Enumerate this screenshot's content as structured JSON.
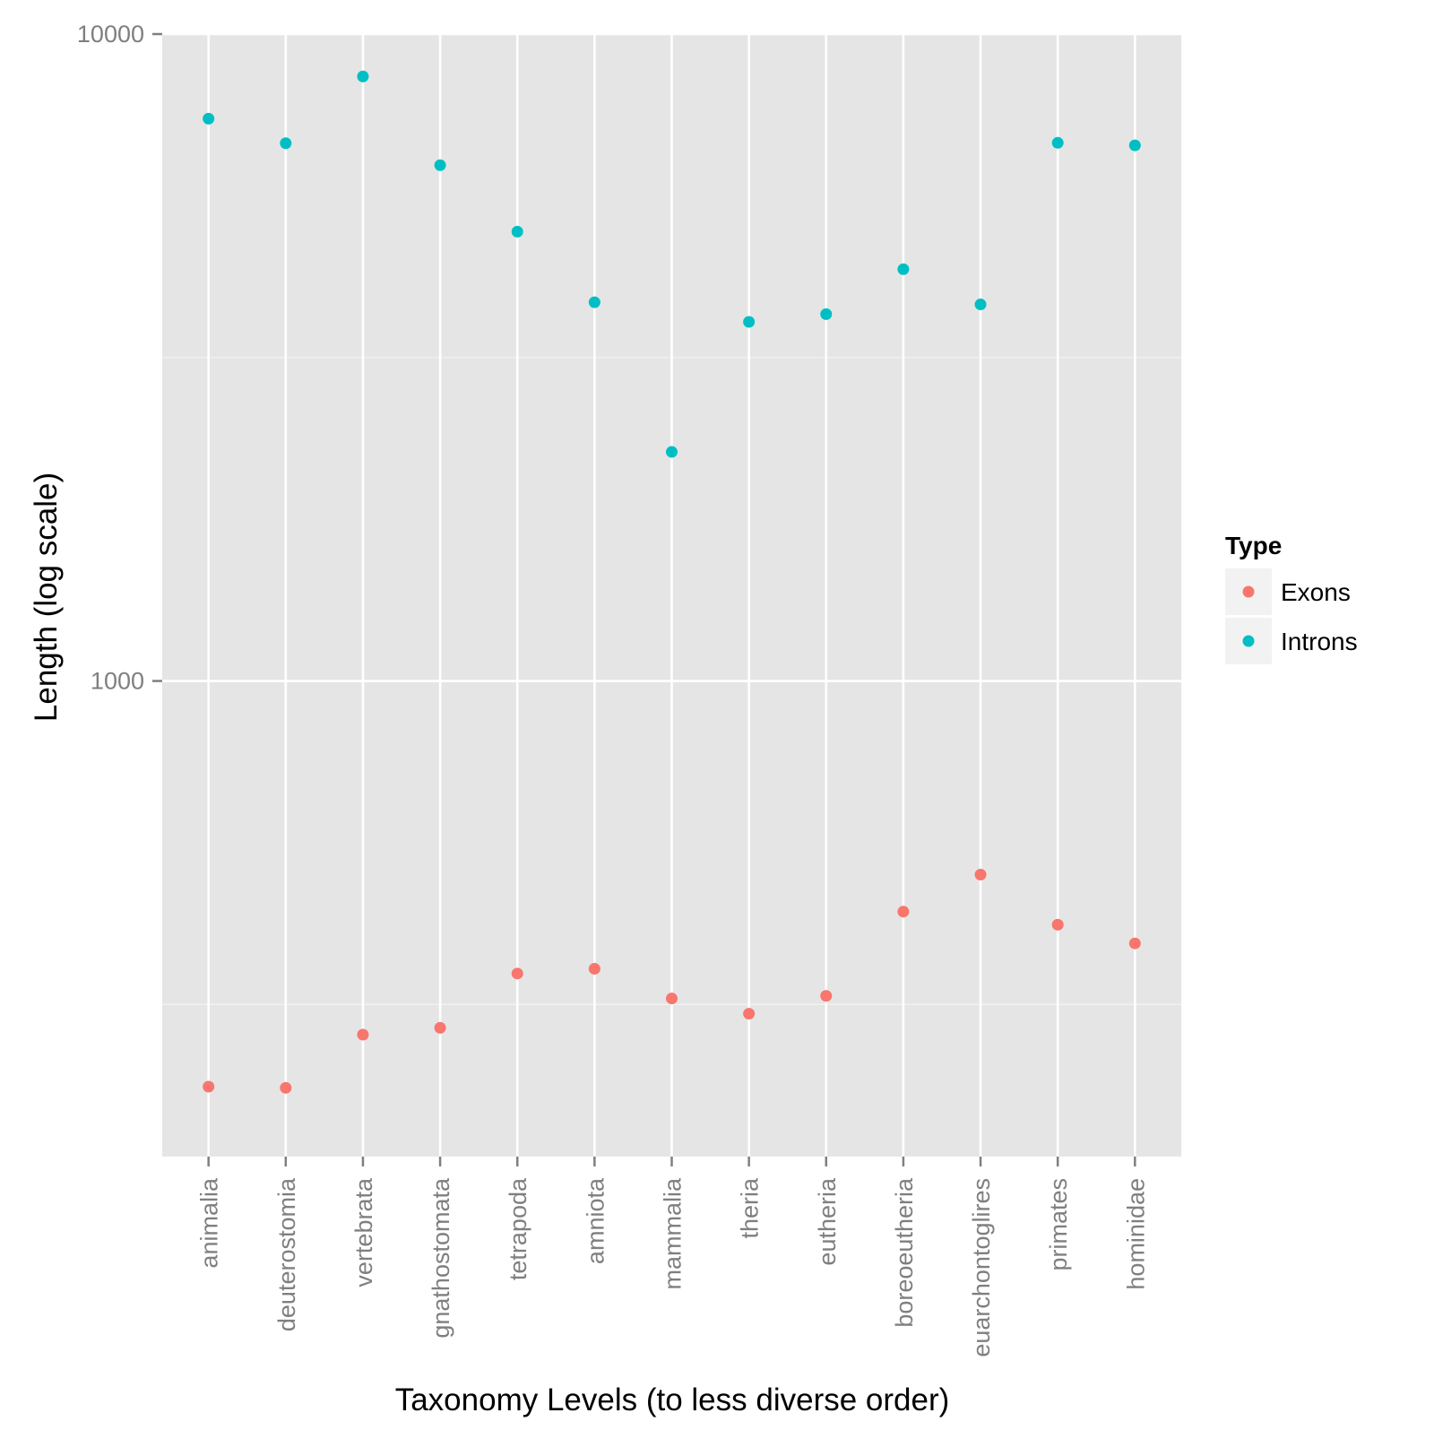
{
  "chart_data": {
    "type": "scatter",
    "xlabel": "Taxonomy Levels (to less diverse order)",
    "ylabel": "Length (log scale)",
    "y_scale": "log",
    "ylim": [
      184,
      10000
    ],
    "y_ticks": [
      {
        "value": 1000,
        "label": "1000"
      },
      {
        "value": 10000,
        "label": "10000"
      }
    ],
    "grid": true,
    "legend": {
      "title": "Type",
      "position": "right"
    },
    "categories": [
      "animalia",
      "deuterostomia",
      "vertebrata",
      "gnathostomata",
      "tetrapoda",
      "amniota",
      "mammalia",
      "theria",
      "eutheria",
      "boreoeutheria",
      "euarchontoglires",
      "primates",
      "hominidae"
    ],
    "series": [
      {
        "name": "Exons",
        "color": "#F8766D",
        "values": [
          236,
          235,
          284,
          291,
          353,
          359,
          323,
          306,
          326,
          440,
          502,
          420,
          393
        ]
      },
      {
        "name": "Introns",
        "color": "#00BFC4",
        "values": [
          7400,
          6780,
          8600,
          6270,
          4950,
          3850,
          2260,
          3590,
          3690,
          4330,
          3820,
          6790,
          6730
        ]
      }
    ]
  }
}
